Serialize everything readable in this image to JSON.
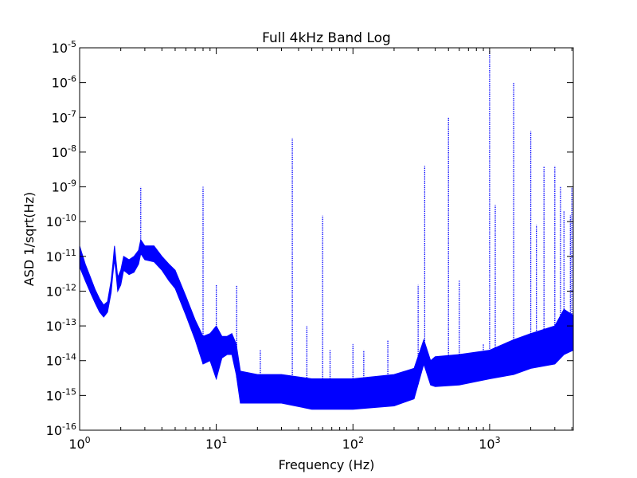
{
  "chart_data": {
    "type": "line",
    "title": "Full 4kHz Band Log",
    "xlabel": "Frequency (Hz)",
    "ylabel": "ASD 1/sqrt(Hz)",
    "x_scale": "log",
    "y_scale": "log",
    "xlim": [
      1,
      4096
    ],
    "ylim": [
      1e-16,
      1e-05
    ],
    "grid": false,
    "legend": "none",
    "x_ticks": [
      {
        "value": 1,
        "base": "10",
        "exp": "0"
      },
      {
        "value": 10,
        "base": "10",
        "exp": "1"
      },
      {
        "value": 100,
        "base": "10",
        "exp": "2"
      },
      {
        "value": 1000,
        "base": "10",
        "exp": "3"
      }
    ],
    "y_ticks": [
      {
        "value": 1e-16,
        "base": "10",
        "exp": "-16"
      },
      {
        "value": 1e-15,
        "base": "10",
        "exp": "-15"
      },
      {
        "value": 1e-14,
        "base": "10",
        "exp": "-14"
      },
      {
        "value": 1e-13,
        "base": "10",
        "exp": "-13"
      },
      {
        "value": 1e-12,
        "base": "10",
        "exp": "-12"
      },
      {
        "value": 1e-11,
        "base": "10",
        "exp": "-11"
      },
      {
        "value": 1e-10,
        "base": "10",
        "exp": "-10"
      },
      {
        "value": 1e-09,
        "base": "10",
        "exp": "-9"
      },
      {
        "value": 1e-08,
        "base": "10",
        "exp": "-8"
      },
      {
        "value": 1e-07,
        "base": "10",
        "exp": "-7"
      },
      {
        "value": 1e-06,
        "base": "10",
        "exp": "-6"
      },
      {
        "value": 1e-05,
        "base": "10",
        "exp": "-5"
      }
    ],
    "series": [
      {
        "color": "#0000ff",
        "style": "dotted",
        "band_upper": [
          [
            1,
            2e-11
          ],
          [
            1.1,
            6e-12
          ],
          [
            1.2,
            2.5e-12
          ],
          [
            1.3,
            1.1e-12
          ],
          [
            1.4,
            6e-13
          ],
          [
            1.5,
            4e-13
          ],
          [
            1.6,
            5e-13
          ],
          [
            1.7,
            2e-12
          ],
          [
            1.75,
            6e-12
          ],
          [
            1.8,
            2e-11
          ],
          [
            1.85,
            7e-12
          ],
          [
            1.9,
            2.5e-12
          ],
          [
            2.0,
            4e-12
          ],
          [
            2.1,
            1e-11
          ],
          [
            2.3,
            8e-12
          ],
          [
            2.5,
            1e-11
          ],
          [
            2.7,
            1.5e-11
          ],
          [
            2.8,
            3e-11
          ],
          [
            3.0,
            2e-11
          ],
          [
            3.5,
            2e-11
          ],
          [
            4.0,
            1e-11
          ],
          [
            4.5,
            6e-12
          ],
          [
            5.0,
            4e-12
          ],
          [
            6,
            7e-13
          ],
          [
            7,
            1.5e-13
          ],
          [
            8,
            5e-14
          ],
          [
            9,
            6e-14
          ],
          [
            10,
            1e-13
          ],
          [
            11,
            5e-14
          ],
          [
            12,
            5e-14
          ],
          [
            13,
            6e-14
          ],
          [
            14,
            3e-14
          ],
          [
            15,
            5e-15
          ],
          [
            20,
            4e-15
          ],
          [
            30,
            4e-15
          ],
          [
            50,
            3e-15
          ],
          [
            100,
            3e-15
          ],
          [
            200,
            4e-15
          ],
          [
            280,
            6e-15
          ],
          [
            330,
            4e-14
          ],
          [
            370,
            1e-14
          ],
          [
            400,
            1.3e-14
          ],
          [
            600,
            1.5e-14
          ],
          [
            1000,
            2e-14
          ],
          [
            1500,
            4e-14
          ],
          [
            2000,
            6e-14
          ],
          [
            3000,
            1e-13
          ],
          [
            3500,
            3e-13
          ],
          [
            4096,
            2e-13
          ]
        ],
        "band_lower": [
          [
            1,
            5e-12
          ],
          [
            1.1,
            2e-12
          ],
          [
            1.2,
            9e-13
          ],
          [
            1.3,
            4.5e-13
          ],
          [
            1.4,
            2.5e-13
          ],
          [
            1.5,
            1.8e-13
          ],
          [
            1.6,
            2.5e-13
          ],
          [
            1.7,
            9e-13
          ],
          [
            1.75,
            3e-12
          ],
          [
            1.8,
            8e-12
          ],
          [
            1.85,
            3e-12
          ],
          [
            1.9,
            1e-12
          ],
          [
            2.0,
            1.5e-12
          ],
          [
            2.1,
            4e-12
          ],
          [
            2.3,
            3e-12
          ],
          [
            2.5,
            3.5e-12
          ],
          [
            2.7,
            6e-12
          ],
          [
            2.8,
            1.2e-11
          ],
          [
            3.0,
            8e-12
          ],
          [
            3.5,
            7e-12
          ],
          [
            4.0,
            4e-12
          ],
          [
            4.5,
            2e-12
          ],
          [
            5.0,
            1.2e-12
          ],
          [
            6,
            2e-13
          ],
          [
            7,
            4e-14
          ],
          [
            8,
            8e-15
          ],
          [
            9,
            1e-14
          ],
          [
            10,
            3e-15
          ],
          [
            11,
            1.2e-14
          ],
          [
            12,
            1.5e-14
          ],
          [
            13,
            1.5e-14
          ],
          [
            14,
            4e-15
          ],
          [
            15,
            6e-16
          ],
          [
            20,
            6e-16
          ],
          [
            30,
            6e-16
          ],
          [
            50,
            4e-16
          ],
          [
            100,
            4e-16
          ],
          [
            200,
            5e-16
          ],
          [
            280,
            8e-16
          ],
          [
            330,
            8e-15
          ],
          [
            370,
            2e-15
          ],
          [
            400,
            1.8e-15
          ],
          [
            600,
            2e-15
          ],
          [
            1000,
            3e-15
          ],
          [
            1500,
            4e-15
          ],
          [
            2000,
            6e-15
          ],
          [
            3000,
            8e-15
          ],
          [
            3500,
            1.5e-14
          ],
          [
            4096,
            2e-14
          ]
        ],
        "peaks": [
          [
            2.8,
            1e-09
          ],
          [
            8,
            1e-09
          ],
          [
            10,
            1.5e-12
          ],
          [
            14.1,
            1.5e-12
          ],
          [
            21,
            2e-14
          ],
          [
            36,
            2.5e-08
          ],
          [
            46,
            1e-13
          ],
          [
            60,
            1.5e-10
          ],
          [
            68,
            2e-14
          ],
          [
            100,
            3e-14
          ],
          [
            120,
            2e-14
          ],
          [
            180,
            4e-14
          ],
          [
            300,
            1.5e-12
          ],
          [
            335,
            4e-09
          ],
          [
            500,
            1e-07
          ],
          [
            600,
            2e-12
          ],
          [
            900,
            3e-14
          ],
          [
            1000,
            8e-06
          ],
          [
            1100,
            3e-10
          ],
          [
            1500,
            1e-06
          ],
          [
            2000,
            4e-08
          ],
          [
            2200,
            8e-11
          ],
          [
            2500,
            4e-09
          ],
          [
            3000,
            4e-09
          ],
          [
            3300,
            1e-09
          ],
          [
            3500,
            2e-10
          ],
          [
            3900,
            1.5e-10
          ],
          [
            4000,
            1e-09
          ]
        ]
      }
    ]
  }
}
